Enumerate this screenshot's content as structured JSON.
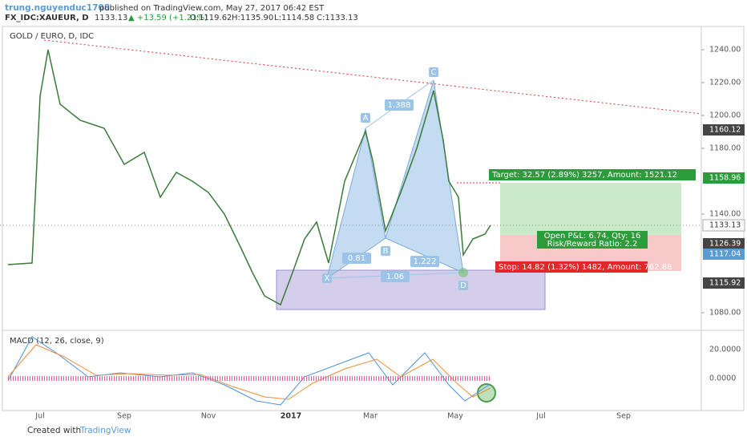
{
  "header": {
    "author": "trung.nguyenduc1708",
    "published": "published on TradingView.com, May 27, 2017 06:42 EST",
    "symbol": "FX_IDC:XAUEUR, D",
    "price": "1133.13",
    "change": "▲ +13.59 (+1.21%)",
    "open": "O:1119.62",
    "high": "H:1135.90",
    "low": "L:1114.58",
    "close": "C:1133.13"
  },
  "chart_title": "GOLD / EURO, D, IDC",
  "price_axis": {
    "ticks": [
      {
        "value": 1240,
        "label": "1240.00"
      },
      {
        "value": 1220,
        "label": "1220.00"
      },
      {
        "value": 1200,
        "label": "1200.00"
      },
      {
        "value": 1180,
        "label": "1180.00"
      },
      {
        "value": 1140,
        "label": "1140.00"
      },
      {
        "value": 1080,
        "label": "1080.00"
      }
    ],
    "badges": [
      "1160.12",
      "1158.96",
      "1133.13",
      "1126.39",
      "1117.04",
      "1115.92"
    ]
  },
  "pattern": {
    "points": [
      "X",
      "A",
      "B",
      "C",
      "D"
    ],
    "ratios": [
      "0.81",
      "1.388",
      "1.222",
      "1.06"
    ]
  },
  "trade": {
    "target": "Target: 32.57 (2.89%) 3257, Amount: 1521.12",
    "pnl": "Open P&L: 6.74, Qty: 16",
    "rr": "Risk/Reward Ratio: 2.2",
    "stop": "Stop: 14.82 (1.32%) 1482, Amount: 762.88"
  },
  "macd": {
    "title": "MACD (12, 26, close, 9)",
    "ticks": [
      "20.0000",
      "0.0000"
    ]
  },
  "time_axis": [
    "Jul",
    "Sep",
    "Nov",
    "2017",
    "Mar",
    "May",
    "Jul",
    "Sep"
  ],
  "footer": {
    "created": "Created with",
    "brand": "TradingView"
  }
}
